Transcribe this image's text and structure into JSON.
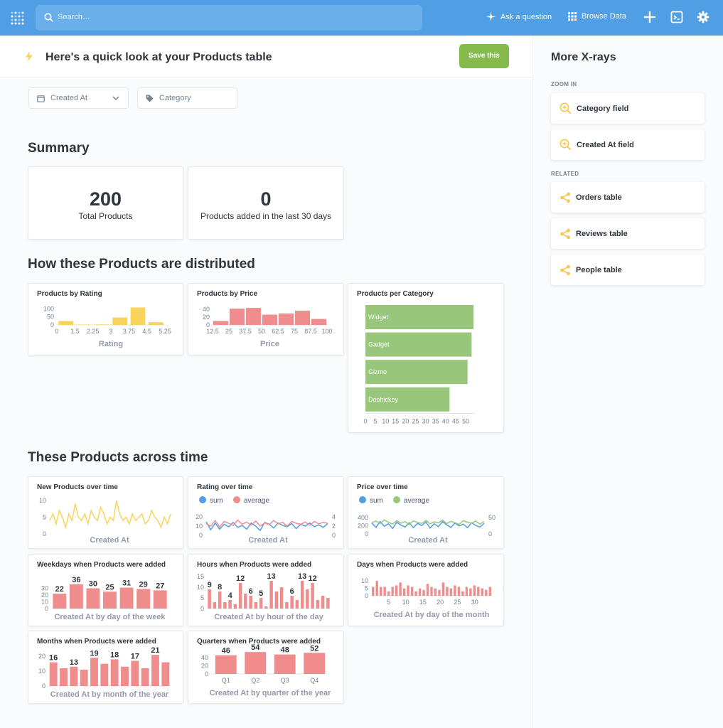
{
  "nav": {
    "search_placeholder": "Search…",
    "ask_label": "Ask a question",
    "browse_label": "Browse Data"
  },
  "header": {
    "title": "Here's a quick look at your Products table",
    "save_label": "Save this"
  },
  "filters": {
    "created_at": "Created At",
    "category": "Category"
  },
  "sections": {
    "summary": "Summary",
    "distribution": "How these Products are distributed",
    "time": "These Products across time"
  },
  "summary": {
    "total_value": "200",
    "total_label": "Total Products",
    "recent_value": "0",
    "recent_label": "Products added in the last 30 days"
  },
  "sidebar": {
    "title": "More X-rays",
    "zoom_in_label": "ZOOM IN",
    "zoom_items": [
      "Category field",
      "Created At field"
    ],
    "related_label": "RELATED",
    "related_items": [
      "Orders table",
      "Reviews table",
      "People table"
    ]
  },
  "colors": {
    "nav": "#509ee3",
    "yellow": "#f9d45c",
    "pink": "#ef8c8c",
    "green": "#98c77b",
    "blue": "#509ee3",
    "save": "#84bb4c"
  },
  "chart_data": [
    {
      "id": "rating",
      "type": "bar",
      "title": "Products by Rating",
      "xlabel": "Rating",
      "color": "#f9d45c",
      "categories": [
        "0-1.5",
        "1.5-2.25",
        "2.25-3",
        "3-3.75",
        "3.75-4.5",
        "4.5-5.25"
      ],
      "values": [
        24,
        2,
        3,
        46,
        108,
        17
      ],
      "xticks": [
        "0",
        "1.5",
        "2.25",
        "3",
        "3.75",
        "4.5",
        "5.25"
      ],
      "yticks": [
        "100",
        "50",
        "0"
      ],
      "ylim": [
        0,
        110
      ]
    },
    {
      "id": "price",
      "type": "bar",
      "title": "Products by Price",
      "xlabel": "Price",
      "color": "#ef8c8c",
      "categories": [
        "12.5-25",
        "25-37.5",
        "37.5-50",
        "50-62.5",
        "62.5-75",
        "75-87.5",
        "87.5-100"
      ],
      "values": [
        10,
        41,
        43,
        26,
        29,
        36,
        15
      ],
      "xticks": [
        "12.5",
        "25",
        "37.5",
        "50",
        "62.5",
        "75",
        "87.5",
        "100"
      ],
      "yticks": [
        "40",
        "20",
        "0"
      ],
      "ylim": [
        0,
        45
      ]
    },
    {
      "id": "category",
      "type": "bar",
      "orientation": "horizontal",
      "title": "Products per Category",
      "color": "#98c77b",
      "categories": [
        "Widget",
        "Gadget",
        "Gizmo",
        "Doohickey"
      ],
      "values": [
        54,
        53,
        51,
        42
      ],
      "xticks": [
        "0",
        "5",
        "10",
        "15",
        "20",
        "25",
        "30",
        "35",
        "40",
        "45",
        "50"
      ],
      "xlim": [
        0,
        55
      ]
    },
    {
      "id": "new_over_time",
      "type": "line",
      "title": "New Products over time",
      "xlabel": "Created At",
      "color": "#f9d45c",
      "values": [
        4,
        6,
        3,
        7,
        5,
        2,
        6,
        4,
        9,
        5,
        4,
        6,
        3,
        7,
        5,
        4,
        8,
        6,
        3,
        5,
        4,
        10,
        6,
        4,
        5,
        3,
        6,
        4,
        5,
        6,
        3,
        4,
        7,
        5,
        4,
        2,
        5,
        3,
        6
      ],
      "yticks": [
        "10",
        "5",
        "0"
      ],
      "ylim": [
        0,
        10
      ]
    },
    {
      "id": "rating_over_time",
      "type": "line",
      "title": "Rating over time",
      "xlabel": "Created At",
      "series": [
        {
          "name": "sum",
          "color": "#509ee3",
          "values": [
            22,
            9,
            20,
            10,
            18,
            14,
            21,
            13,
            16,
            10,
            20,
            15,
            8,
            21,
            18,
            12,
            20,
            16,
            14,
            19,
            11,
            18,
            15,
            20,
            14,
            17,
            13,
            19
          ]
        },
        {
          "name": "average",
          "color": "#ef8c8c",
          "values": [
            3.5,
            3.0,
            4.2,
            2.8,
            4.0,
            3.6,
            3.1,
            4.3,
            3.4,
            3.9,
            3.2,
            4.1,
            3.0,
            3.7,
            3.3,
            4.2,
            3.5,
            3.8,
            3.0,
            4.0,
            3.6,
            3.4,
            3.9,
            3.2,
            4.0,
            3.5,
            3.8,
            3.6
          ]
        }
      ],
      "yticks_left": [
        "20",
        "10",
        "0"
      ],
      "yticks_right": [
        "4",
        "2",
        "0"
      ]
    },
    {
      "id": "price_over_time",
      "type": "line",
      "title": "Price over time",
      "xlabel": "Created At",
      "series": [
        {
          "name": "sum",
          "color": "#509ee3",
          "values": [
            300,
            180,
            340,
            210,
            280,
            150,
            320,
            240,
            190,
            310,
            170,
            290,
            230,
            330,
            160,
            280,
            200,
            340,
            250,
            180,
            300,
            220,
            270,
            170,
            310,
            230,
            190,
            290
          ]
        },
        {
          "name": "average",
          "color": "#98c77b",
          "values": [
            48,
            55,
            44,
            60,
            50,
            42,
            57,
            46,
            53,
            40,
            56,
            49,
            45,
            58,
            43,
            52,
            47,
            59,
            44,
            54,
            48,
            41,
            57,
            50,
            46,
            55,
            42,
            53
          ]
        }
      ],
      "yticks_left": [
        "400",
        "200",
        "0"
      ],
      "yticks_right": [
        "50",
        "0"
      ]
    },
    {
      "id": "weekdays",
      "type": "bar",
      "title": "Weekdays when Products were added",
      "xlabel": "Created At by day of the week",
      "color": "#ef8c8c",
      "values": [
        22,
        36,
        30,
        25,
        31,
        29,
        27
      ],
      "labels": true,
      "yticks": [
        "30",
        "20",
        "10",
        "0"
      ],
      "ylim": [
        0,
        40
      ]
    },
    {
      "id": "hours",
      "type": "bar",
      "title": "Hours when Products were added",
      "xlabel": "Created At by hour of the day",
      "color": "#ef8c8c",
      "values": [
        9,
        3,
        8,
        3,
        4,
        2,
        12,
        7,
        6,
        3,
        5,
        1,
        13,
        8,
        10,
        3,
        6,
        4,
        13,
        9,
        12,
        4,
        6,
        5
      ],
      "value_labels": {
        "0": "9",
        "2": "8",
        "4": "4",
        "6": "12",
        "8": "6",
        "10": "5",
        "12": "13",
        "16": "6",
        "18": "13",
        "20": "12"
      },
      "yticks": [
        "15",
        "10",
        "5",
        "0"
      ],
      "ylim": [
        0,
        15
      ]
    },
    {
      "id": "days",
      "type": "bar",
      "title": "Days when Products were added",
      "xlabel": "Created At by day of the month",
      "color": "#ef8c8c",
      "values": [
        6,
        10,
        6,
        6,
        3,
        6,
        7,
        9,
        5,
        7,
        6,
        3,
        5,
        4,
        8,
        6,
        5,
        4,
        9,
        6,
        5,
        7,
        6,
        3,
        6,
        5,
        7,
        6,
        5,
        4,
        6
      ],
      "xticks": [
        "5",
        "10",
        "15",
        "20",
        "25",
        "30"
      ],
      "yticks": [
        "10",
        "5",
        "0"
      ],
      "ylim": [
        0,
        12
      ]
    },
    {
      "id": "months",
      "type": "bar",
      "title": "Months when Products were added",
      "xlabel": "Created At by month of the year",
      "color": "#ef8c8c",
      "values": [
        16,
        12,
        13,
        11,
        19,
        15,
        18,
        13,
        17,
        12,
        21,
        16
      ],
      "value_labels": {
        "0": "16",
        "2": "13",
        "4": "19",
        "6": "18",
        "8": "17",
        "10": "21"
      },
      "yticks": [
        "20",
        "10",
        "0"
      ],
      "ylim": [
        0,
        22
      ]
    },
    {
      "id": "quarters",
      "type": "bar",
      "title": "Quarters when Products were added",
      "xlabel": "Created At by quarter of the year",
      "color": "#ef8c8c",
      "categories": [
        "Q1",
        "Q2",
        "Q3",
        "Q4"
      ],
      "values": [
        46,
        54,
        48,
        52
      ],
      "labels": true,
      "yticks": [
        "40",
        "20",
        "0"
      ],
      "ylim": [
        0,
        56
      ]
    }
  ]
}
